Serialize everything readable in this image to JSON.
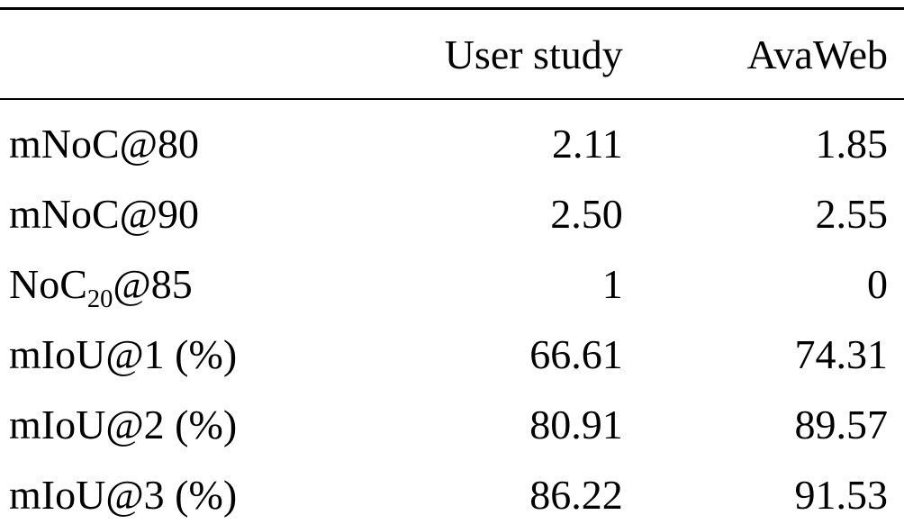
{
  "table": {
    "columns": [
      {
        "label": "User study"
      },
      {
        "label": "AvaWeb"
      }
    ],
    "rows": [
      {
        "label_parts": [
          {
            "t": "mNoC@80"
          }
        ],
        "user_study": "2.11",
        "avaweb": "1.85"
      },
      {
        "label_parts": [
          {
            "t": "mNoC@90"
          }
        ],
        "user_study": "2.50",
        "avaweb": "2.55"
      },
      {
        "label_parts": [
          {
            "t": "NoC"
          },
          {
            "t": "20",
            "sub": true
          },
          {
            "t": "@85"
          }
        ],
        "user_study": "1",
        "avaweb": "0"
      },
      {
        "label_parts": [
          {
            "t": "mIoU@1 (%)"
          }
        ],
        "user_study": "66.61",
        "avaweb": "74.31"
      },
      {
        "label_parts": [
          {
            "t": "mIoU@2 (%)"
          }
        ],
        "user_study": "80.91",
        "avaweb": "89.57"
      },
      {
        "label_parts": [
          {
            "t": "mIoU@3 (%)"
          }
        ],
        "user_study": "86.22",
        "avaweb": "91.53"
      }
    ],
    "text_color": "#000000",
    "background_color": "#ffffff"
  }
}
